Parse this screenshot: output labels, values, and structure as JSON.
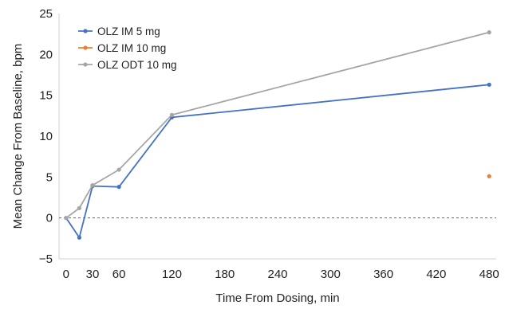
{
  "chart_data": {
    "type": "line",
    "title": "",
    "xlabel": "Time From Dosing, min",
    "ylabel": "Mean Change From Baseline, bpm",
    "xlim": [
      -8,
      488
    ],
    "ylim": [
      -5,
      25
    ],
    "xticks": [
      0,
      30,
      60,
      120,
      180,
      240,
      300,
      360,
      420,
      480
    ],
    "yticks": [
      -5,
      0,
      5,
      10,
      15,
      20,
      25
    ],
    "grid": false,
    "legend_position": "top-left",
    "reference_line": {
      "y": 0,
      "style": "dashed"
    },
    "series": [
      {
        "name": "OLZ IM 5 mg",
        "color": "#4472c4",
        "x": [
          0,
          15,
          30,
          60,
          120,
          480
        ],
        "y": [
          0,
          -2.4,
          3.9,
          3.8,
          12.3,
          16.3
        ]
      },
      {
        "name": "OLZ IM 10 mg",
        "color": "#ed7d31",
        "x": [
          480
        ],
        "y": [
          5.1
        ]
      },
      {
        "name": "OLZ ODT 10 mg",
        "color": "#a5a5a5",
        "x": [
          0,
          15,
          30,
          60,
          120,
          480
        ],
        "y": [
          0,
          1.2,
          4.0,
          5.9,
          12.6,
          22.7
        ]
      }
    ]
  }
}
